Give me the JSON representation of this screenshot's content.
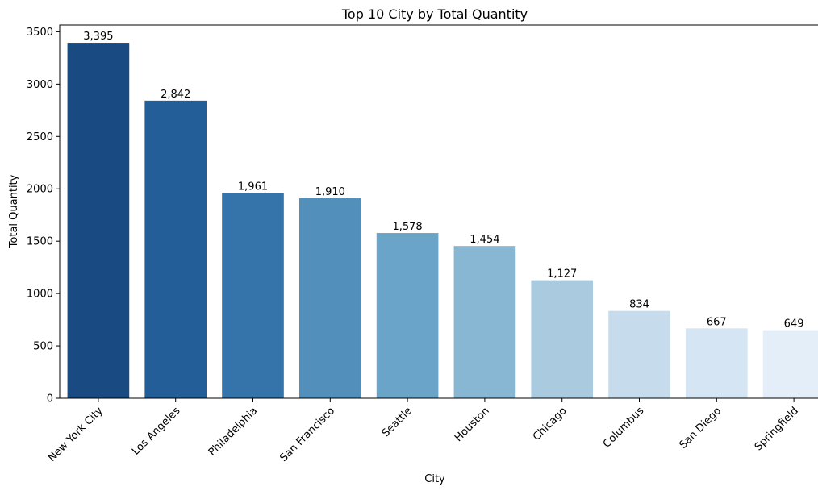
{
  "chart_data": {
    "type": "bar",
    "title": "Top 10 City by Total Quantity",
    "xlabel": "City",
    "ylabel": "Total Quantity",
    "categories": [
      "New York City",
      "Los Angeles",
      "Philadelphia",
      "San Francisco",
      "Seattle",
      "Houston",
      "Chicago",
      "Columbus",
      "San Diego",
      "Springfield"
    ],
    "values": [
      3395,
      2842,
      1961,
      1910,
      1578,
      1454,
      1127,
      834,
      667,
      649
    ],
    "value_labels": [
      "3,395",
      "2,842",
      "1,961",
      "1,910",
      "1,578",
      "1,454",
      "1,127",
      "834",
      "667",
      "649"
    ],
    "ylim": [
      0,
      3564.75
    ],
    "yticks": [
      0,
      500,
      1000,
      1500,
      2000,
      2500,
      3000,
      3500
    ],
    "grid": false,
    "colors": [
      "#1a4a82",
      "#245e98",
      "#3574ab",
      "#528fbb",
      "#6aa5c9",
      "#88b7d4",
      "#aacae0",
      "#c6dbeb",
      "#d6e5f3",
      "#e4eef8"
    ]
  }
}
